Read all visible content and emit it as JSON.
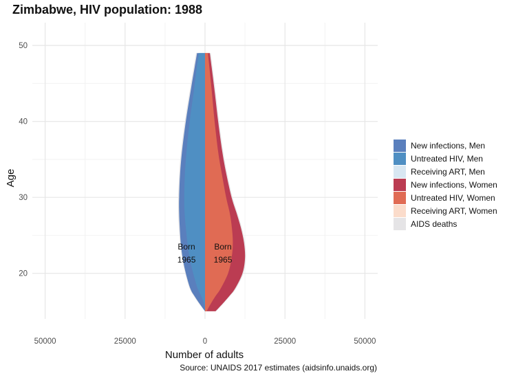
{
  "title": "Zimbabwe, HIV population: 1988",
  "caption": "Source: UNAIDS 2017 estimates (aidsinfo.unaids.org)",
  "chart_data": {
    "type": "area",
    "xlabel": "Number of adults",
    "ylabel": "Age",
    "xlim": [
      -54000,
      54000
    ],
    "ylim": [
      14,
      53
    ],
    "x_ticks": [
      -50000,
      -25000,
      0,
      25000,
      50000
    ],
    "x_tick_labels": [
      "50000",
      "25000",
      "0",
      "25000",
      "50000"
    ],
    "y_ticks": [
      20,
      30,
      40,
      50
    ],
    "y_tick_labels": [
      "20",
      "30",
      "40",
      "50"
    ],
    "grid": true,
    "legend_position": "right",
    "ages": [
      15,
      16,
      17,
      18,
      20,
      22,
      24,
      26,
      28,
      30,
      33,
      36,
      40,
      44,
      47,
      49
    ],
    "series": [
      {
        "name": "New infections, Men",
        "color": "#5a7fbd",
        "values": [
          0,
          1700,
          3300,
          4600,
          6000,
          7000,
          7600,
          7900,
          8100,
          8100,
          7800,
          7200,
          6000,
          4500,
          3300,
          2500
        ]
      },
      {
        "name": "Untreated HIV, Men",
        "color": "#4f8fc3",
        "values": [
          0,
          300,
          1200,
          2300,
          3700,
          4800,
          5500,
          6000,
          6400,
          6500,
          6300,
          5800,
          4800,
          3500,
          2600,
          1900
        ]
      },
      {
        "name": "Receiving ART, Men",
        "color": "#d8e7f2",
        "values": []
      },
      {
        "name": "New infections, Women",
        "color": "#bb3c52",
        "values": [
          3300,
          5500,
          7600,
          9400,
          11700,
          12500,
          12200,
          11200,
          9800,
          8300,
          6700,
          5400,
          4100,
          3000,
          2100,
          1500
        ]
      },
      {
        "name": "Untreated HIV, Women",
        "color": "#e06b54",
        "values": [
          500,
          1800,
          3300,
          4900,
          7200,
          8300,
          8700,
          8400,
          7700,
          6600,
          5300,
          4100,
          3000,
          2100,
          1400,
          900
        ]
      },
      {
        "name": "Receiving ART, Women",
        "color": "#fbdccb",
        "values": []
      },
      {
        "name": "AIDS deaths",
        "color": "#e5e4e6",
        "values_men": [
          0,
          1900,
          3500,
          4800,
          6200,
          7200,
          7800,
          8200,
          8400,
          8400,
          8100,
          7500,
          6300,
          4800,
          3600,
          2800
        ],
        "values_women": [
          3500,
          5700,
          7800,
          9700,
          12000,
          12800,
          12500,
          11500,
          10100,
          8600,
          7000,
          5700,
          4400,
          3300,
          2400,
          1800
        ]
      }
    ],
    "annotations": [
      {
        "line1": "Born",
        "line2": "1965",
        "x": -5800,
        "y": 23.5
      },
      {
        "line1": "Born",
        "line2": "1965",
        "x": 5600,
        "y": 23.5
      }
    ]
  }
}
